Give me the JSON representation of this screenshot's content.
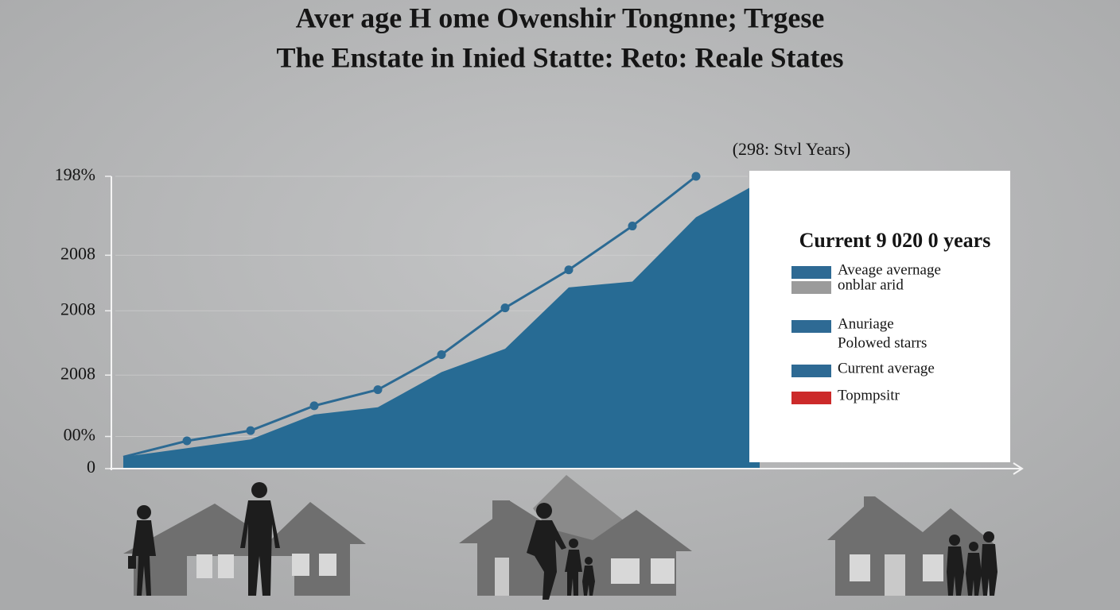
{
  "chart_data": {
    "type": "line-area",
    "title": [
      "Aver age H ome Owenshir Tongnne; Trgese",
      "The Enstate in Inied Statte: Reto: Reale States"
    ],
    "annotation": "(298: Stvl Years)",
    "categories": [
      null,
      null,
      null,
      null,
      null,
      null,
      null,
      null,
      null,
      null,
      null
    ],
    "series": [
      {
        "kind": "line",
        "color": "#2c6a93",
        "values": [
          4,
          9.5,
          13,
          21.5,
          27,
          39,
          55,
          68,
          83,
          100,
          null
        ]
      },
      {
        "kind": "area",
        "color": "#276b94",
        "values": [
          4,
          7,
          10,
          18.5,
          21,
          33,
          41,
          62,
          64,
          86,
          98
        ]
      }
    ],
    "ylim": [
      0,
      100
    ],
    "yticks": [
      0,
      {
        "value": 11,
        "label": "00%"
      },
      {
        "value": 32,
        "label": "2008"
      },
      {
        "value": 54,
        "label": "2008"
      },
      {
        "value": 73,
        "label": "2008"
      },
      {
        "value": 100,
        "label": "198%"
      }
    ],
    "grid": true,
    "legend": {
      "title": "Current  9 020 0 years",
      "items": [
        {
          "lines": [
            "Aveage avernage"
          ],
          "color": "#2e6a94"
        },
        {
          "lines": [
            "onblar arid"
          ],
          "color": "#9b9b9b"
        },
        {
          "lines": [
            "Anuriage",
            "Polowed starrs"
          ],
          "color": "#2e6a94"
        },
        {
          "lines": [
            "Current average"
          ],
          "color": "#2e6a94"
        },
        {
          "lines": [
            "Topmpsitr"
          ],
          "color": "#cc2a2a"
        }
      ]
    }
  }
}
